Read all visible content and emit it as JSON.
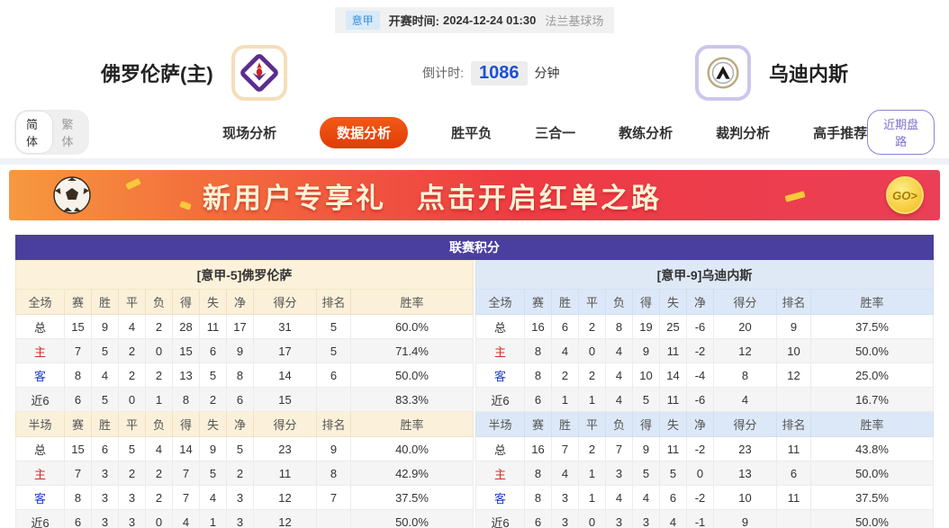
{
  "meta": {
    "league": "意甲",
    "kickoff_label": "开赛时间:",
    "kickoff_time": "2024-12-24 01:30",
    "venue": "法兰基球场"
  },
  "match": {
    "home_name": "佛罗伦萨(主)",
    "away_name": "乌迪内斯",
    "countdown_label": "倒计时:",
    "countdown_value": "1086",
    "countdown_unit": "分钟"
  },
  "lang_toggle": {
    "simplified": "简体",
    "traditional": "繁体"
  },
  "tabs": [
    "现场分析",
    "数据分析",
    "胜平负",
    "三合一",
    "教练分析",
    "裁判分析",
    "高手推荐"
  ],
  "active_tab": "数据分析",
  "recent_odds_button": "近期盘路",
  "banner": {
    "title": "新用户专享礼",
    "subtitle": "点击开启红单之路",
    "cta": "GO>"
  },
  "league_table": {
    "title": "联赛积分",
    "full_headers": [
      "全场",
      "赛",
      "胜",
      "平",
      "负",
      "得",
      "失",
      "净",
      "得分",
      "排名",
      "胜率"
    ],
    "half_headers": [
      "半场",
      "赛",
      "胜",
      "平",
      "负",
      "得",
      "失",
      "净",
      "得分",
      "排名",
      "胜率"
    ],
    "home": {
      "section_title": "[意甲-5]佛罗伦萨",
      "full_rows": [
        [
          "总",
          "15",
          "9",
          "4",
          "2",
          "28",
          "11",
          "17",
          "31",
          "5",
          "60.0%"
        ],
        [
          "主",
          "7",
          "5",
          "2",
          "0",
          "15",
          "6",
          "9",
          "17",
          "5",
          "71.4%"
        ],
        [
          "客",
          "8",
          "4",
          "2",
          "2",
          "13",
          "5",
          "8",
          "14",
          "6",
          "50.0%"
        ],
        [
          "近6",
          "6",
          "5",
          "0",
          "1",
          "8",
          "2",
          "6",
          "15",
          "",
          "83.3%"
        ]
      ],
      "half_rows": [
        [
          "总",
          "15",
          "6",
          "5",
          "4",
          "14",
          "9",
          "5",
          "23",
          "9",
          "40.0%"
        ],
        [
          "主",
          "7",
          "3",
          "2",
          "2",
          "7",
          "5",
          "2",
          "11",
          "8",
          "42.9%"
        ],
        [
          "客",
          "8",
          "3",
          "3",
          "2",
          "7",
          "4",
          "3",
          "12",
          "7",
          "37.5%"
        ],
        [
          "近6",
          "6",
          "3",
          "3",
          "0",
          "4",
          "1",
          "3",
          "12",
          "",
          "50.0%"
        ]
      ]
    },
    "away": {
      "section_title": "[意甲-9]乌迪内斯",
      "full_rows": [
        [
          "总",
          "16",
          "6",
          "2",
          "8",
          "19",
          "25",
          "-6",
          "20",
          "9",
          "37.5%"
        ],
        [
          "主",
          "8",
          "4",
          "0",
          "4",
          "9",
          "11",
          "-2",
          "12",
          "10",
          "50.0%"
        ],
        [
          "客",
          "8",
          "2",
          "2",
          "4",
          "10",
          "14",
          "-4",
          "8",
          "12",
          "25.0%"
        ],
        [
          "近6",
          "6",
          "1",
          "1",
          "4",
          "5",
          "11",
          "-6",
          "4",
          "",
          "16.7%"
        ]
      ],
      "half_rows": [
        [
          "总",
          "16",
          "7",
          "2",
          "7",
          "9",
          "11",
          "-2",
          "23",
          "11",
          "43.8%"
        ],
        [
          "主",
          "8",
          "4",
          "1",
          "3",
          "5",
          "5",
          "0",
          "13",
          "6",
          "50.0%"
        ],
        [
          "客",
          "8",
          "3",
          "1",
          "4",
          "4",
          "6",
          "-2",
          "10",
          "11",
          "37.5%"
        ],
        [
          "近6",
          "6",
          "3",
          "0",
          "3",
          "3",
          "4",
          "-1",
          "9",
          "",
          "50.0%"
        ]
      ]
    }
  },
  "colors": {
    "title_bar_purple": "#4a3e9e",
    "active_tab_orange": "#e84a10",
    "home_theme_cream": "#fcf1da",
    "away_theme_blue": "#dfe9f6",
    "countdown_blue": "#1e4fd6",
    "home_row_red": "#cf2f25",
    "away_row_blue": "#2440d0",
    "banner_gradient_left": "#f6993f",
    "banner_gradient_right": "#eb3f56"
  }
}
